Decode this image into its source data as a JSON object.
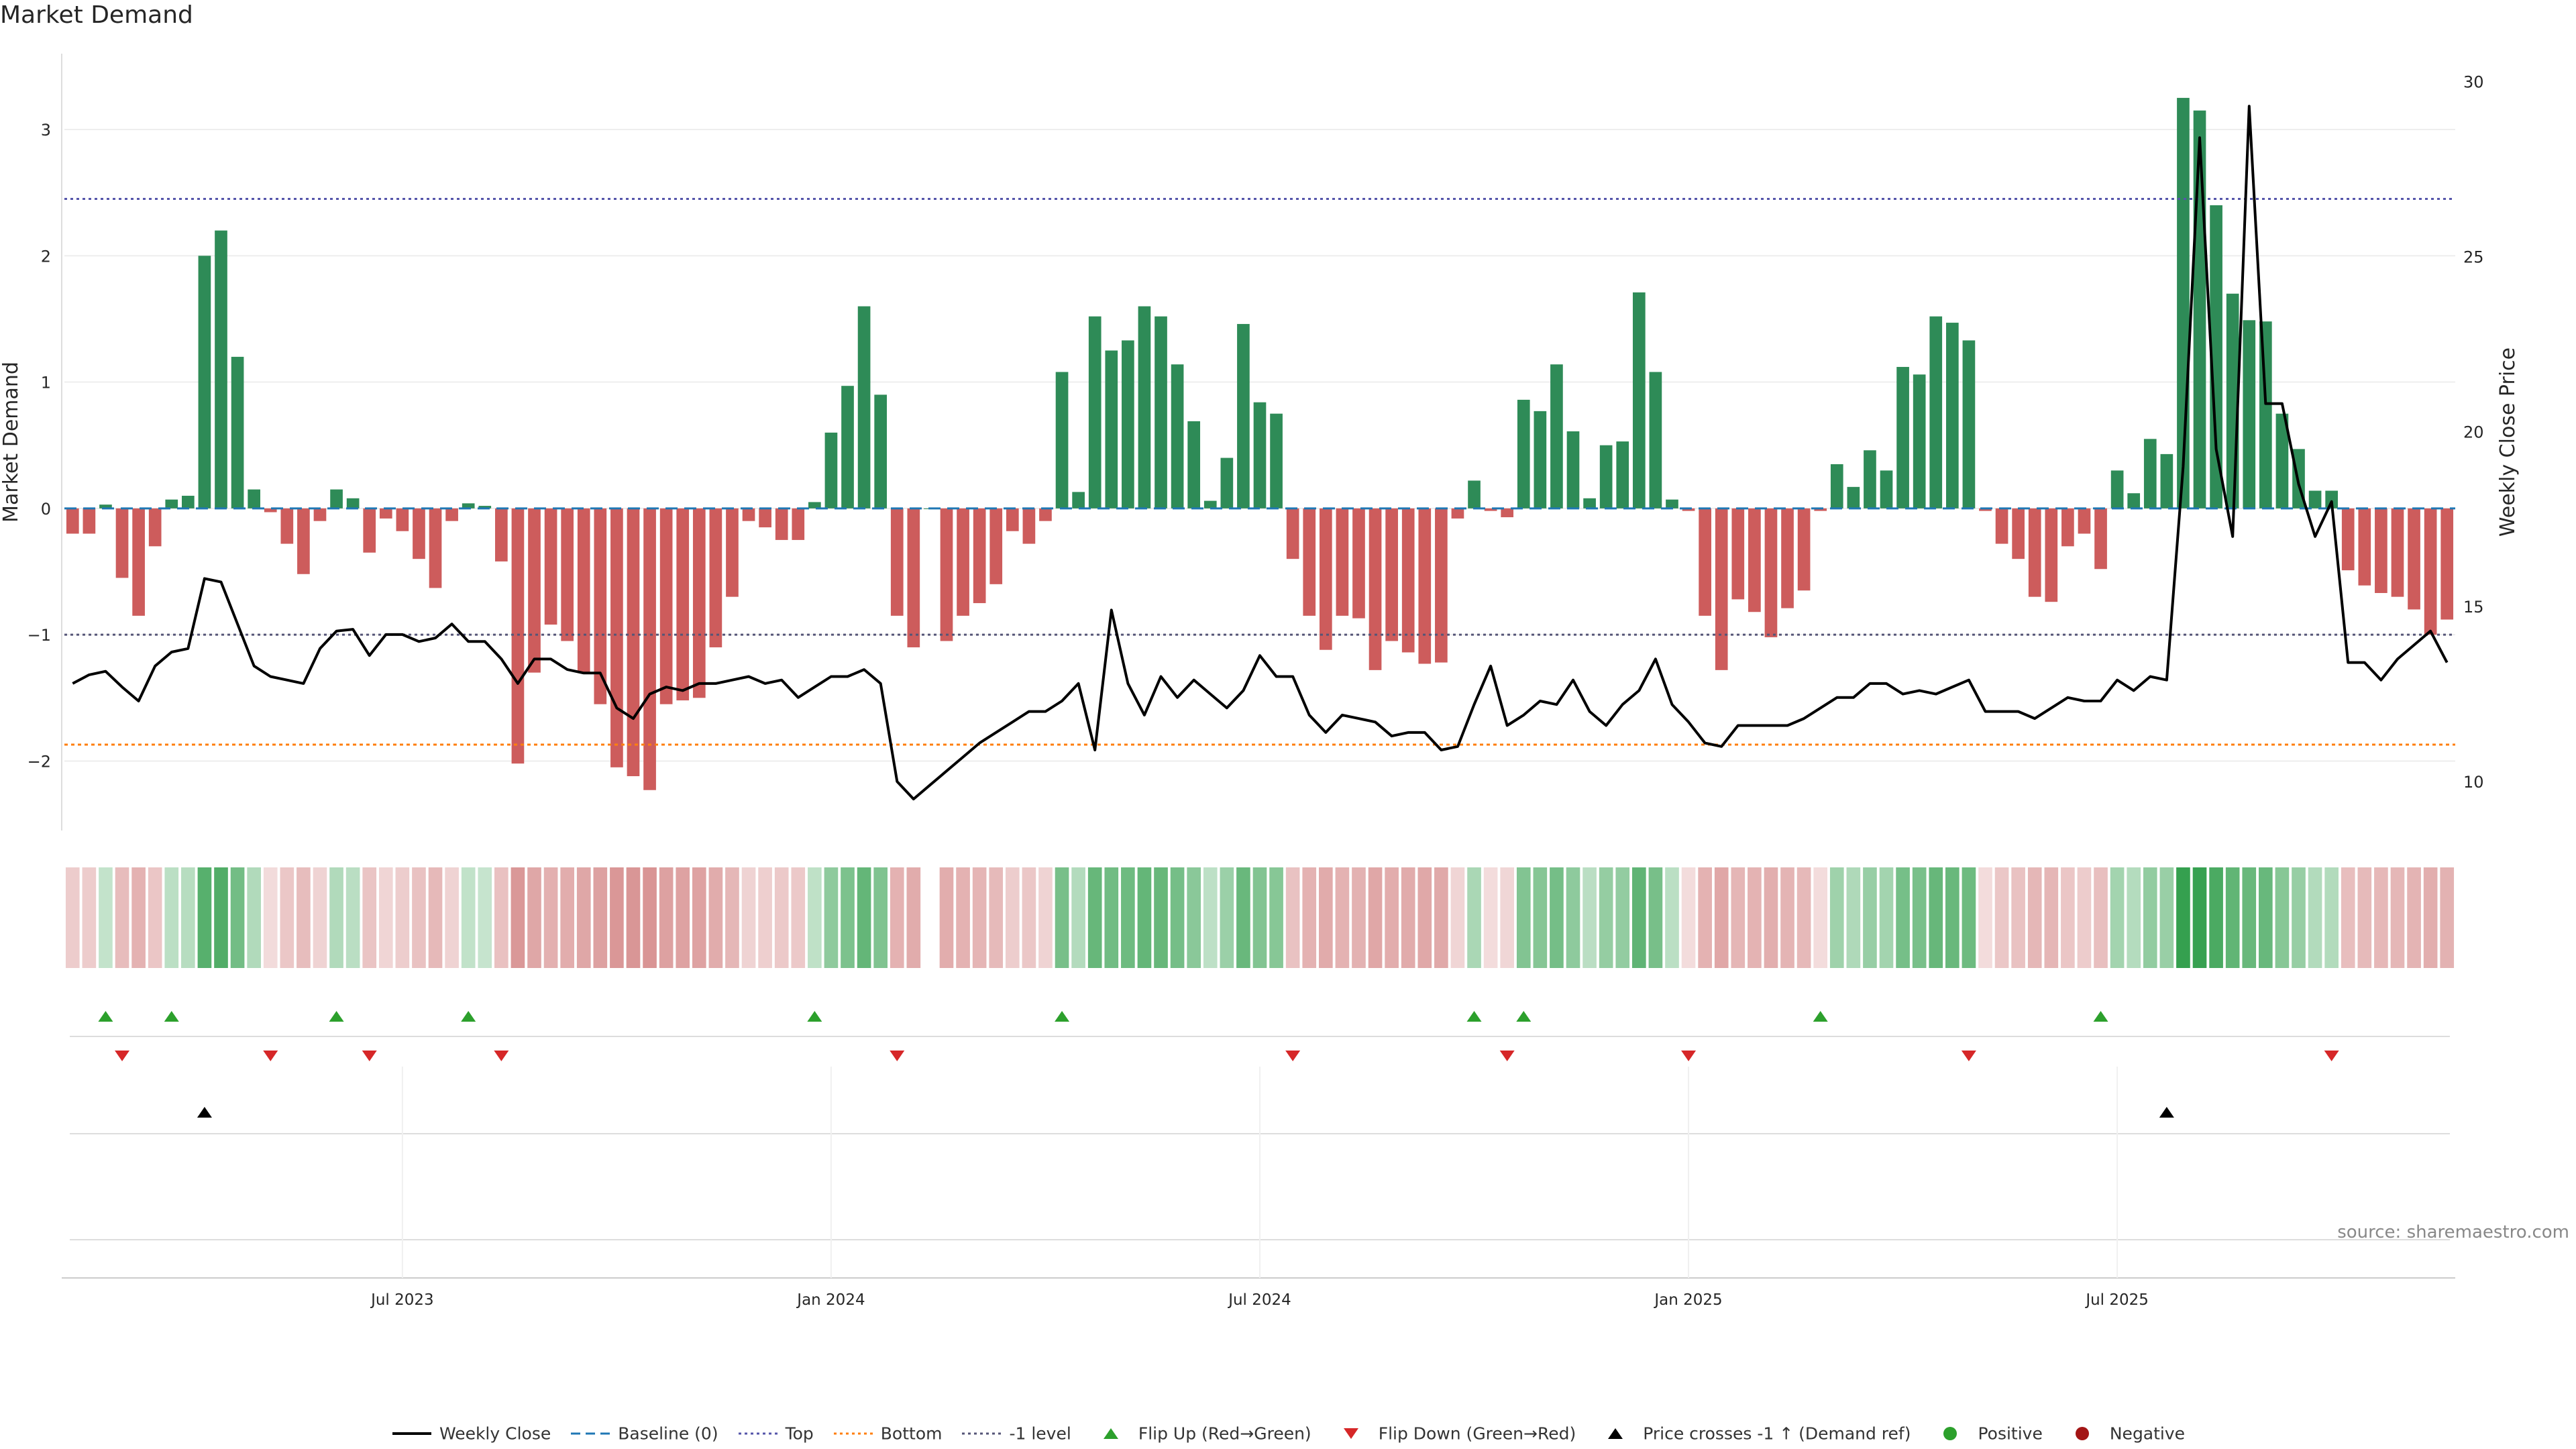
{
  "title": "Market Demand",
  "source": "source: sharemaestro.com",
  "colors": {
    "positive": "#2e8b57",
    "negative": "#cd5c5c",
    "price": "#000000",
    "baseline": "#1f77b4",
    "top": "#5555aa",
    "bottom": "#ff7f0e",
    "minus_one": "#555577",
    "flip_up": "#2ca02c",
    "flip_down": "#d62728",
    "cross": "#000000",
    "dot_positive": "#2ca02c",
    "dot_negative": "#a31515"
  },
  "chart_data": {
    "type": "bar",
    "title": "Market Demand",
    "ylabel": "Market Demand",
    "y2label": "Weekly Close Price",
    "ylim": [
      -2.55,
      3.6
    ],
    "y2lim": [
      8.6,
      30.8
    ],
    "yticks": [
      3,
      2,
      1,
      0,
      -1,
      -2
    ],
    "ytick_labels": [
      "3",
      "2",
      "1",
      "0",
      "−1",
      "−2"
    ],
    "y2ticks": [
      30,
      25,
      20,
      15,
      10
    ],
    "y2tick_labels": [
      "30",
      "25",
      "20",
      "15",
      "10"
    ],
    "xticks": [
      20,
      46,
      72,
      98,
      124
    ],
    "xtick_labels": [
      "Jul 2023",
      "Jan 2024",
      "Jul 2024",
      "Jan 2025",
      "Jul 2025"
    ],
    "levels": {
      "baseline": 0,
      "top": 2.45,
      "bottom": -1.87,
      "minus_one": -1
    },
    "demand": [
      -0.2,
      -0.2,
      0.03,
      -0.55,
      -0.85,
      -0.3,
      0.07,
      0.1,
      2.0,
      2.2,
      1.2,
      0.15,
      -0.03,
      -0.28,
      -0.52,
      -0.1,
      0.15,
      0.08,
      -0.35,
      -0.08,
      -0.18,
      -0.4,
      -0.63,
      -0.1,
      0.04,
      0.02,
      -0.42,
      -2.02,
      -1.3,
      -0.92,
      -1.05,
      -1.3,
      -1.55,
      -2.05,
      -2.12,
      -2.23,
      -1.55,
      -1.52,
      -1.5,
      -1.1,
      -0.7,
      -0.1,
      -0.15,
      -0.25,
      -0.25,
      0.05,
      0.6,
      0.97,
      1.6,
      0.9,
      -0.85,
      -1.1,
      0,
      -1.05,
      -0.85,
      -0.75,
      -0.6,
      -0.18,
      -0.28,
      -0.1,
      1.08,
      0.13,
      1.52,
      1.25,
      1.33,
      1.6,
      1.52,
      1.14,
      0.69,
      0.06,
      0.4,
      1.46,
      0.84,
      0.75,
      -0.4,
      -0.85,
      -1.12,
      -0.85,
      -0.87,
      -1.28,
      -1.05,
      -1.14,
      -1.23,
      -1.22,
      -0.08,
      0.22,
      -0.02,
      -0.07,
      0.86,
      0.77,
      1.14,
      0.61,
      0.08,
      0.5,
      0.53,
      1.71,
      1.08,
      0.07,
      -0.02,
      -0.85,
      -1.28,
      -0.72,
      -0.82,
      -1.02,
      -0.79,
      -0.65,
      -0.02,
      0.35,
      0.17,
      0.46,
      0.3,
      1.12,
      1.06,
      1.52,
      1.47,
      1.33,
      -0.02,
      -0.28,
      -0.4,
      -0.7,
      -0.74,
      -0.3,
      -0.2,
      -0.48,
      0.3,
      0.12,
      0.55,
      0.43,
      3.25,
      3.15,
      2.4,
      1.7,
      1.49,
      1.48,
      0.75,
      0.47,
      0.14,
      0.14,
      -0.49,
      -0.61,
      -0.67,
      -0.7,
      -0.8,
      -1.0,
      -0.88
    ],
    "price": [
      12.8,
      13.05,
      13.15,
      12.7,
      12.3,
      13.3,
      13.7,
      13.8,
      15.8,
      15.7,
      14.5,
      13.3,
      13.0,
      12.9,
      12.8,
      13.8,
      14.3,
      14.35,
      13.6,
      14.2,
      14.2,
      14.0,
      14.1,
      14.5,
      14.0,
      14.0,
      13.5,
      12.8,
      13.5,
      13.5,
      13.2,
      13.1,
      13.1,
      12.1,
      11.8,
      12.5,
      12.7,
      12.6,
      12.8,
      12.8,
      12.9,
      13.0,
      12.8,
      12.9,
      12.4,
      12.7,
      13.0,
      13.0,
      13.2,
      12.8,
      10.0,
      9.5,
      9.9,
      10.3,
      10.7,
      11.1,
      11.4,
      11.7,
      12.0,
      12.0,
      12.3,
      12.8,
      10.9,
      14.9,
      12.8,
      11.9,
      13.0,
      12.4,
      12.9,
      12.5,
      12.1,
      12.6,
      13.6,
      13.0,
      13.0,
      11.9,
      11.4,
      11.9,
      11.8,
      11.7,
      11.3,
      11.4,
      11.4,
      10.9,
      11.0,
      12.2,
      13.3,
      11.6,
      11.9,
      12.3,
      12.2,
      12.9,
      12.0,
      11.6,
      12.2,
      12.6,
      13.5,
      12.2,
      11.7,
      11.1,
      11.0,
      11.6,
      11.6,
      11.6,
      11.6,
      11.8,
      12.1,
      12.4,
      12.4,
      12.8,
      12.8,
      12.5,
      12.6,
      12.5,
      12.7,
      12.9,
      12.0,
      12.0,
      12.0,
      11.8,
      12.1,
      12.4,
      12.3,
      12.3,
      12.9,
      12.6,
      13.0,
      12.9,
      19.0,
      28.4,
      19.5,
      17.0,
      29.3,
      20.8,
      20.8,
      18.5,
      17.0,
      18.0,
      13.4,
      13.4,
      12.9,
      13.5,
      13.9,
      14.3,
      13.4
    ],
    "flip_up": [
      2,
      6,
      16,
      24,
      45,
      60,
      85,
      88,
      106,
      123
    ],
    "flip_down": [
      3,
      12,
      18,
      26,
      50,
      74,
      87,
      98,
      115,
      137
    ],
    "price_cross_up": [
      8,
      127
    ],
    "positive_dots": [],
    "negative_dots": [],
    "legend": [
      {
        "key": "price",
        "label": "Weekly Close",
        "style": "line"
      },
      {
        "key": "baseline",
        "label": "Baseline (0)",
        "style": "dash"
      },
      {
        "key": "top",
        "label": "Top",
        "style": "dot"
      },
      {
        "key": "bottom",
        "label": "Bottom",
        "style": "dot"
      },
      {
        "key": "minus_one",
        "label": "-1 level",
        "style": "dot"
      },
      {
        "key": "flip_up",
        "label": "Flip Up (Red→Green)",
        "style": "tri-up"
      },
      {
        "key": "flip_down",
        "label": "Flip Down (Green→Red)",
        "style": "tri-down"
      },
      {
        "key": "cross",
        "label": "Price crosses -1 ↑ (Demand ref)",
        "style": "tri-up"
      },
      {
        "key": "dot_positive",
        "label": "Positive",
        "style": "circle"
      },
      {
        "key": "dot_negative",
        "label": "Negative",
        "style": "circle"
      }
    ]
  }
}
